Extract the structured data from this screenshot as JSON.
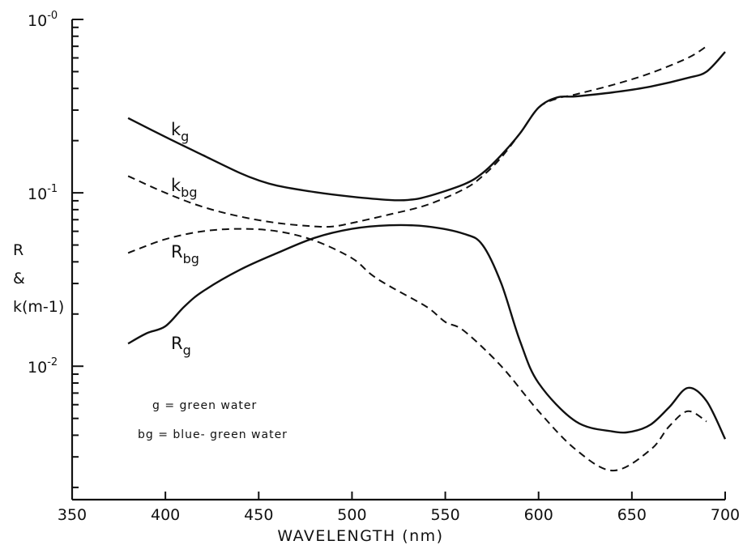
{
  "chart_data": {
    "type": "line",
    "xlabel": "WAVELENGTH  (nm)",
    "ylabel_lines": [
      "R",
      "&",
      "k(m-1)"
    ],
    "xlim": [
      350,
      700
    ],
    "ylim": [
      0.0017,
      1.0
    ],
    "y_scale": "log",
    "grid": false,
    "x_ticks": [
      350,
      400,
      450,
      500,
      550,
      600,
      650,
      700
    ],
    "y_tick_labels": [
      {
        "value": 1.0,
        "base": "10",
        "exp": "-0"
      },
      {
        "value": 0.1,
        "base": "10",
        "exp": "-1"
      },
      {
        "value": 0.01,
        "base": "10",
        "exp": "-2"
      }
    ],
    "legend": [
      "g = green water",
      "bg = blue- green water"
    ],
    "series": [
      {
        "name": "kg",
        "label_main": "k",
        "label_sub": "g",
        "style": "solid",
        "x": [
          380,
          400,
          420,
          440,
          450,
          460,
          480,
          500,
          520,
          530,
          540,
          560,
          570,
          580,
          590,
          600,
          610,
          620,
          640,
          660,
          680,
          690,
          700
        ],
        "y": [
          0.27,
          0.21,
          0.165,
          0.13,
          0.118,
          0.11,
          0.101,
          0.095,
          0.091,
          0.091,
          0.095,
          0.112,
          0.13,
          0.165,
          0.22,
          0.31,
          0.355,
          0.36,
          0.38,
          0.41,
          0.46,
          0.5,
          0.65
        ]
      },
      {
        "name": "kbg",
        "label_main": "k",
        "label_sub": "bg",
        "style": "dashed",
        "x": [
          380,
          400,
          420,
          440,
          460,
          480,
          490,
          500,
          520,
          540,
          560,
          570,
          580,
          590,
          600,
          610,
          620,
          640,
          660,
          680,
          690
        ],
        "y": [
          0.125,
          0.1,
          0.083,
          0.073,
          0.067,
          0.064,
          0.064,
          0.067,
          0.075,
          0.085,
          0.105,
          0.125,
          0.16,
          0.22,
          0.31,
          0.35,
          0.37,
          0.42,
          0.49,
          0.6,
          0.7
        ]
      },
      {
        "name": "Rbg",
        "label_main": "R",
        "label_sub": "bg",
        "style": "dashed",
        "x": [
          380,
          400,
          420,
          440,
          460,
          480,
          500,
          510,
          520,
          540,
          550,
          560,
          580,
          600,
          620,
          640,
          660,
          670,
          680,
          690
        ],
        "y": [
          0.045,
          0.054,
          0.06,
          0.062,
          0.06,
          0.053,
          0.042,
          0.034,
          0.029,
          0.022,
          0.018,
          0.016,
          0.01,
          0.0055,
          0.0033,
          0.0025,
          0.0033,
          0.0045,
          0.0055,
          0.0048
        ]
      },
      {
        "name": "Rg",
        "label_main": "R",
        "label_sub": "g",
        "style": "solid",
        "x": [
          380,
          390,
          400,
          410,
          420,
          440,
          460,
          480,
          500,
          520,
          540,
          560,
          570,
          580,
          590,
          600,
          620,
          640,
          650,
          660,
          670,
          680,
          690,
          700
        ],
        "y": [
          0.0135,
          0.0155,
          0.017,
          0.022,
          0.027,
          0.036,
          0.045,
          0.055,
          0.062,
          0.065,
          0.064,
          0.058,
          0.05,
          0.03,
          0.014,
          0.008,
          0.0048,
          0.0042,
          0.0042,
          0.0046,
          0.0058,
          0.0075,
          0.0063,
          0.0038
        ]
      }
    ]
  }
}
